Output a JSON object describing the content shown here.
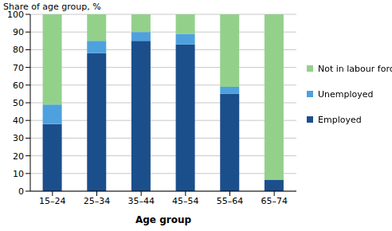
{
  "chart_data": {
    "type": "bar",
    "y_label": "Share of age group, %",
    "x_label": "Age group",
    "categories": [
      "15–24",
      "25–34",
      "35–44",
      "45–54",
      "55–64",
      "65–74"
    ],
    "series": [
      {
        "name": "Employed",
        "color": "#1b4f8c",
        "values": [
          38,
          78,
          85,
          83,
          55,
          6.5
        ]
      },
      {
        "name": "Unemployed",
        "color": "#4ea1de",
        "values": [
          11,
          7,
          5,
          6,
          4,
          0
        ]
      },
      {
        "name": "Not in labour force",
        "color": "#93d18b",
        "values": [
          51,
          15,
          10,
          11,
          41,
          93.5
        ]
      }
    ],
    "ylim": [
      0,
      100
    ],
    "yticks": [
      0,
      10,
      20,
      30,
      40,
      50,
      60,
      70,
      80,
      90,
      100
    ],
    "stacked": true,
    "grid": true,
    "legend": "right"
  }
}
